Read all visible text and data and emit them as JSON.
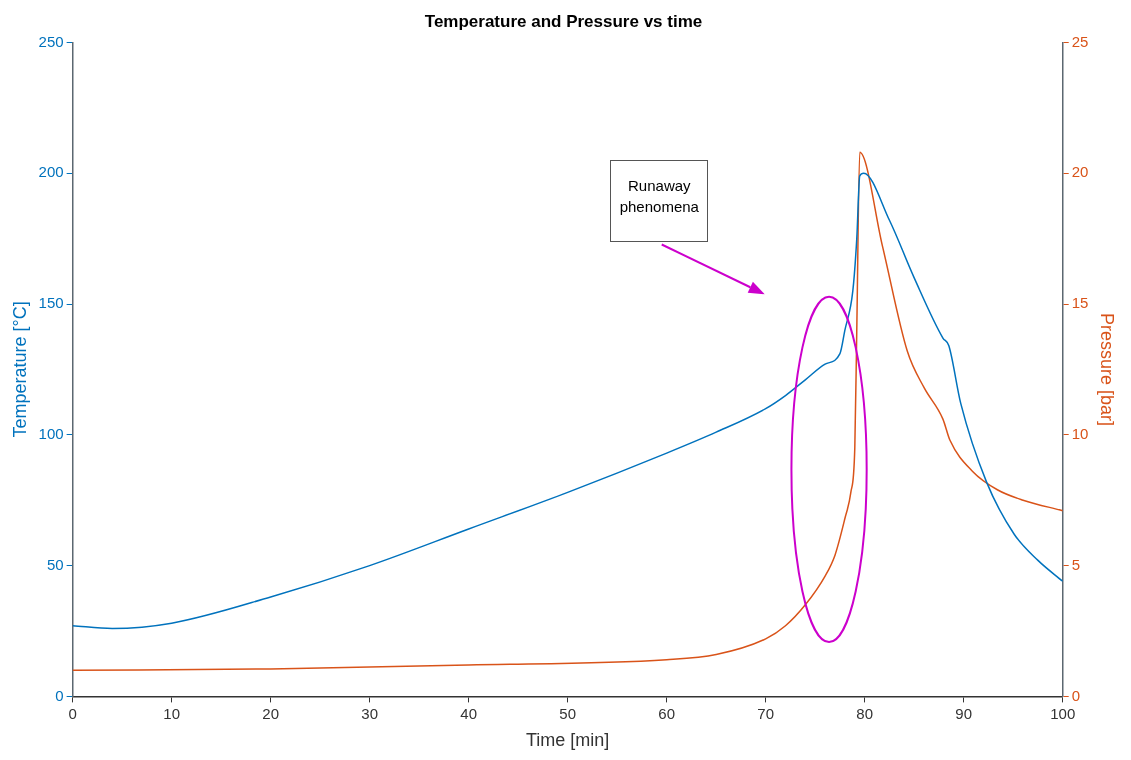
{
  "chart_data": {
    "type": "line",
    "title": "Temperature and Pressure vs time",
    "xlabel": "Time [min]",
    "ylabel": "Temperature [°C]",
    "y2label": "Pressure [bar]",
    "xlim": [
      0,
      100
    ],
    "xticks": [
      0,
      10,
      20,
      30,
      40,
      50,
      60,
      70,
      80,
      90,
      100
    ],
    "ylim": [
      0,
      250
    ],
    "yticks": [
      0,
      50,
      100,
      150,
      200,
      250
    ],
    "y2lim": [
      0,
      25
    ],
    "y2ticks": [
      0,
      5,
      10,
      15,
      20,
      25
    ],
    "grid": false,
    "legend": false,
    "marker": "none",
    "line_style": "solid",
    "annotations": [
      "Runaway\nphenomena"
    ],
    "series": [
      {
        "color": "#0072bd",
        "x": [
          0,
          4,
          10,
          20,
          30,
          40,
          50,
          60,
          65,
          70,
          72,
          74,
          76,
          77.5,
          78,
          78.8,
          79.2,
          79.5,
          79.9,
          82.5,
          85,
          87.9,
          88.5,
          89.7,
          92.3,
          95.1,
          97.5,
          100
        ],
        "values": [
          27,
          26,
          28,
          38,
          50,
          64,
          78,
          93,
          101,
          110,
          115,
          121,
          127,
          131,
          140,
          155,
          175,
          199,
          200,
          182,
          160,
          137,
          134,
          112,
          82,
          62,
          52,
          44
        ]
      },
      {
        "color": "#d95319",
        "axis": "y2",
        "x": [
          0,
          20,
          40,
          60,
          65,
          70,
          72,
          74,
          76,
          77,
          78,
          78.6,
          79,
          79.2,
          79.5,
          81.8,
          84.3,
          86,
          87.9,
          88.6,
          90.9,
          93.4,
          96,
          100
        ],
        "values": [
          1,
          1.05,
          1.2,
          1.4,
          1.6,
          2.2,
          2.7,
          3.5,
          4.6,
          5.4,
          6.8,
          7.8,
          9.5,
          14,
          20.8,
          17.2,
          13.2,
          11.8,
          10.6,
          9.8,
          8.6,
          7.9,
          7.5,
          7.1
        ]
      }
    ]
  }
}
